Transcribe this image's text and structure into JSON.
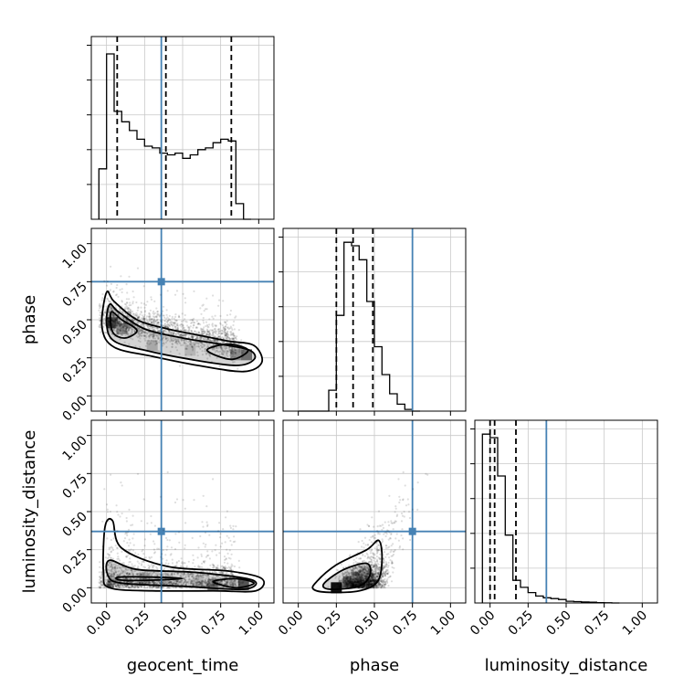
{
  "chart_data": {
    "type": "corner",
    "parameters": [
      "geocent_time",
      "phase",
      "luminosity_distance"
    ],
    "axis_label_texts": {
      "geocent_time": "geocent_time",
      "phase": "phase",
      "luminosity_distance": "luminosity_distance"
    },
    "axis_range": [
      -0.1,
      1.1
    ],
    "tick_values": [
      0.0,
      0.25,
      0.5,
      0.75,
      1.0
    ],
    "tick_labels": [
      "0.00",
      "0.25",
      "0.50",
      "0.75",
      "1.00"
    ],
    "truth_color": "#4682b4",
    "truths": {
      "geocent_time": 0.36,
      "phase": 0.75,
      "luminosity_distance": 0.37
    },
    "quantiles": {
      "geocent_time": [
        0.07,
        0.39,
        0.82
      ],
      "phase": [
        0.25,
        0.36,
        0.49
      ],
      "luminosity_distance": [
        0.0,
        0.03,
        0.17
      ]
    },
    "histograms": {
      "geocent_time": {
        "bin_edges_start": -0.05,
        "bin_width": 0.05,
        "counts": [
          0.29,
          0.95,
          0.62,
          0.56,
          0.51,
          0.46,
          0.42,
          0.41,
          0.38,
          0.37,
          0.38,
          0.35,
          0.37,
          0.4,
          0.41,
          0.44,
          0.46,
          0.45,
          0.09,
          0.0
        ]
      },
      "phase": {
        "bin_edges_start": 0.0,
        "bin_width": 0.05,
        "counts": [
          0.0,
          0.0,
          0.0,
          0.0,
          0.12,
          0.55,
          0.97,
          0.95,
          0.87,
          0.63,
          0.37,
          0.21,
          0.1,
          0.04,
          0.01,
          0.0
        ]
      },
      "luminosity_distance": {
        "bin_edges_start": -0.05,
        "bin_width": 0.05,
        "counts": [
          0.97,
          0.95,
          0.73,
          0.39,
          0.13,
          0.09,
          0.06,
          0.04,
          0.03,
          0.025,
          0.02,
          0.01,
          0.008,
          0.006,
          0.004,
          0.002,
          0.001,
          0.0
        ]
      }
    },
    "hist_ylim": [
      0,
      1.05
    ],
    "grid": true
  }
}
